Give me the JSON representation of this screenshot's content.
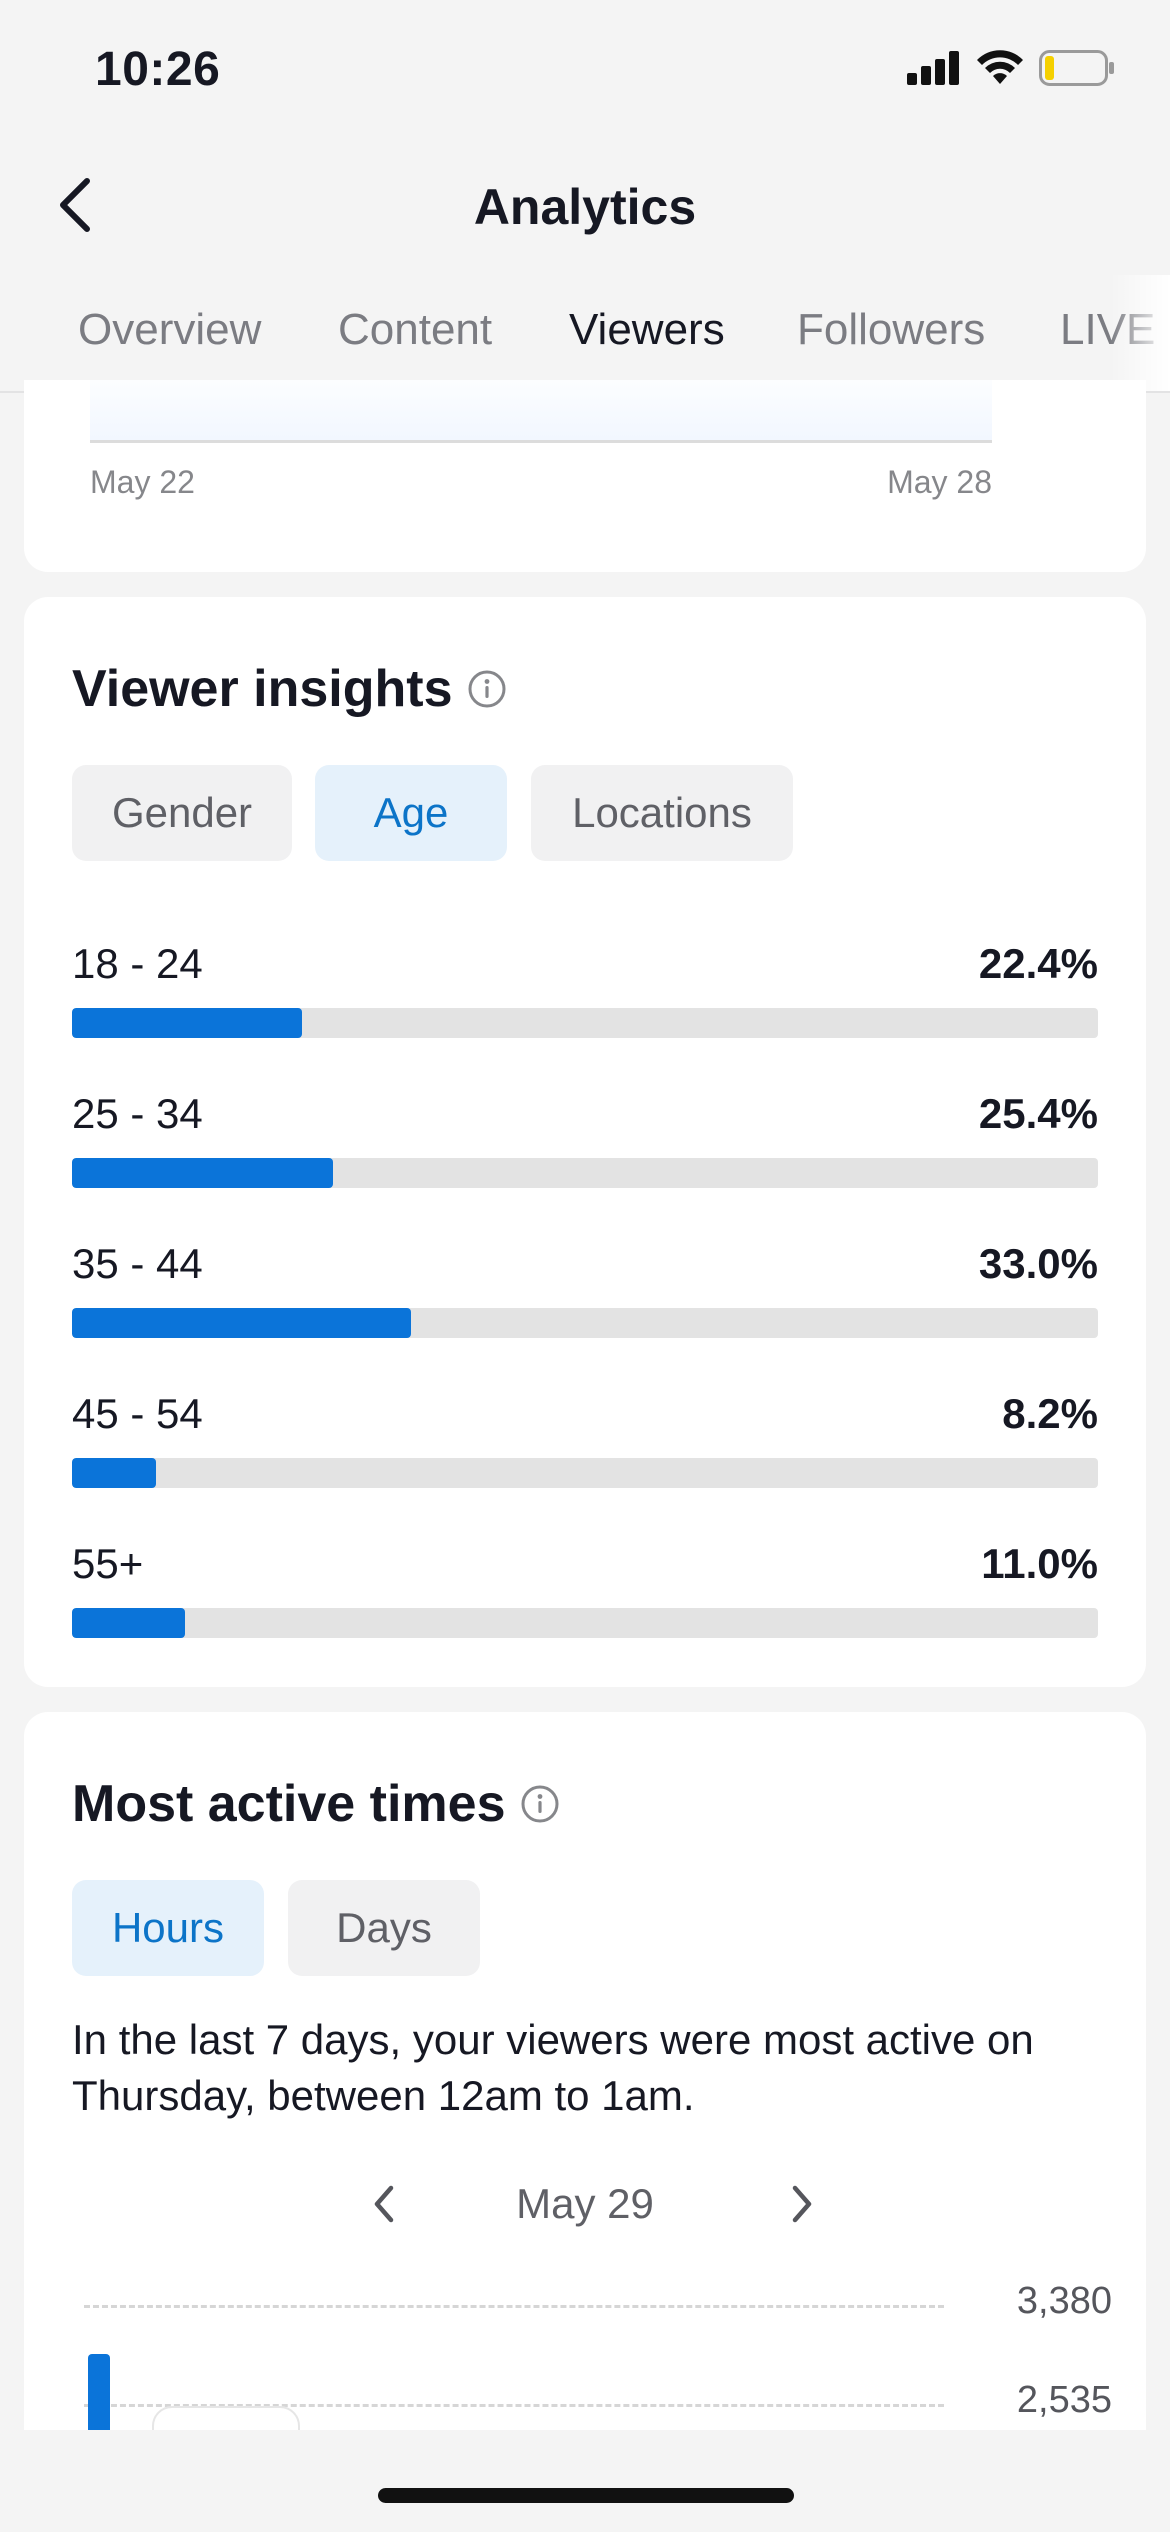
{
  "status_bar": {
    "time": "10:26",
    "icons": [
      "cellular-signal-icon",
      "wifi-icon",
      "battery-low-icon"
    ],
    "battery_color": "#f5d000"
  },
  "header": {
    "title": "Analytics",
    "back_icon": "chevron-left-icon"
  },
  "tabs": [
    {
      "label": "Overview",
      "active": false
    },
    {
      "label": "Content",
      "active": false
    },
    {
      "label": "Viewers",
      "active": true
    },
    {
      "label": "Followers",
      "active": false
    },
    {
      "label": "LIVE",
      "active": false
    }
  ],
  "top_chart": {
    "x_start": "May 22",
    "x_end": "May 28"
  },
  "viewer_insights": {
    "title": "Viewer insights",
    "filters": [
      {
        "label": "Gender",
        "selected": false
      },
      {
        "label": "Age",
        "selected": true
      },
      {
        "label": "Locations",
        "selected": false
      }
    ],
    "ages": [
      {
        "label": "18 - 24",
        "pct_text": "22.4%",
        "pct": 22.4
      },
      {
        "label": "25 - 34",
        "pct_text": "25.4%",
        "pct": 25.4
      },
      {
        "label": "35 - 44",
        "pct_text": "33.0%",
        "pct": 33.0
      },
      {
        "label": "45 - 54",
        "pct_text": "8.2%",
        "pct": 8.2
      },
      {
        "label": "55+",
        "pct_text": "11.0%",
        "pct": 11.0
      }
    ]
  },
  "most_active": {
    "title": "Most active times",
    "filters": [
      {
        "label": "Hours",
        "selected": true
      },
      {
        "label": "Days",
        "selected": false
      }
    ],
    "description": "In the last 7 days, your viewers were most active on Thursday, between 12am to 1am.",
    "date": "May 29",
    "y_labels": [
      "3,380",
      "2,535"
    ]
  },
  "colors": {
    "accent": "#0b74d9",
    "chip_selected_bg": "#e5f1fb",
    "chip_selected_text": "#0c74c8",
    "chip_bg": "#f1f1f2",
    "track": "#e3e3e3"
  }
}
